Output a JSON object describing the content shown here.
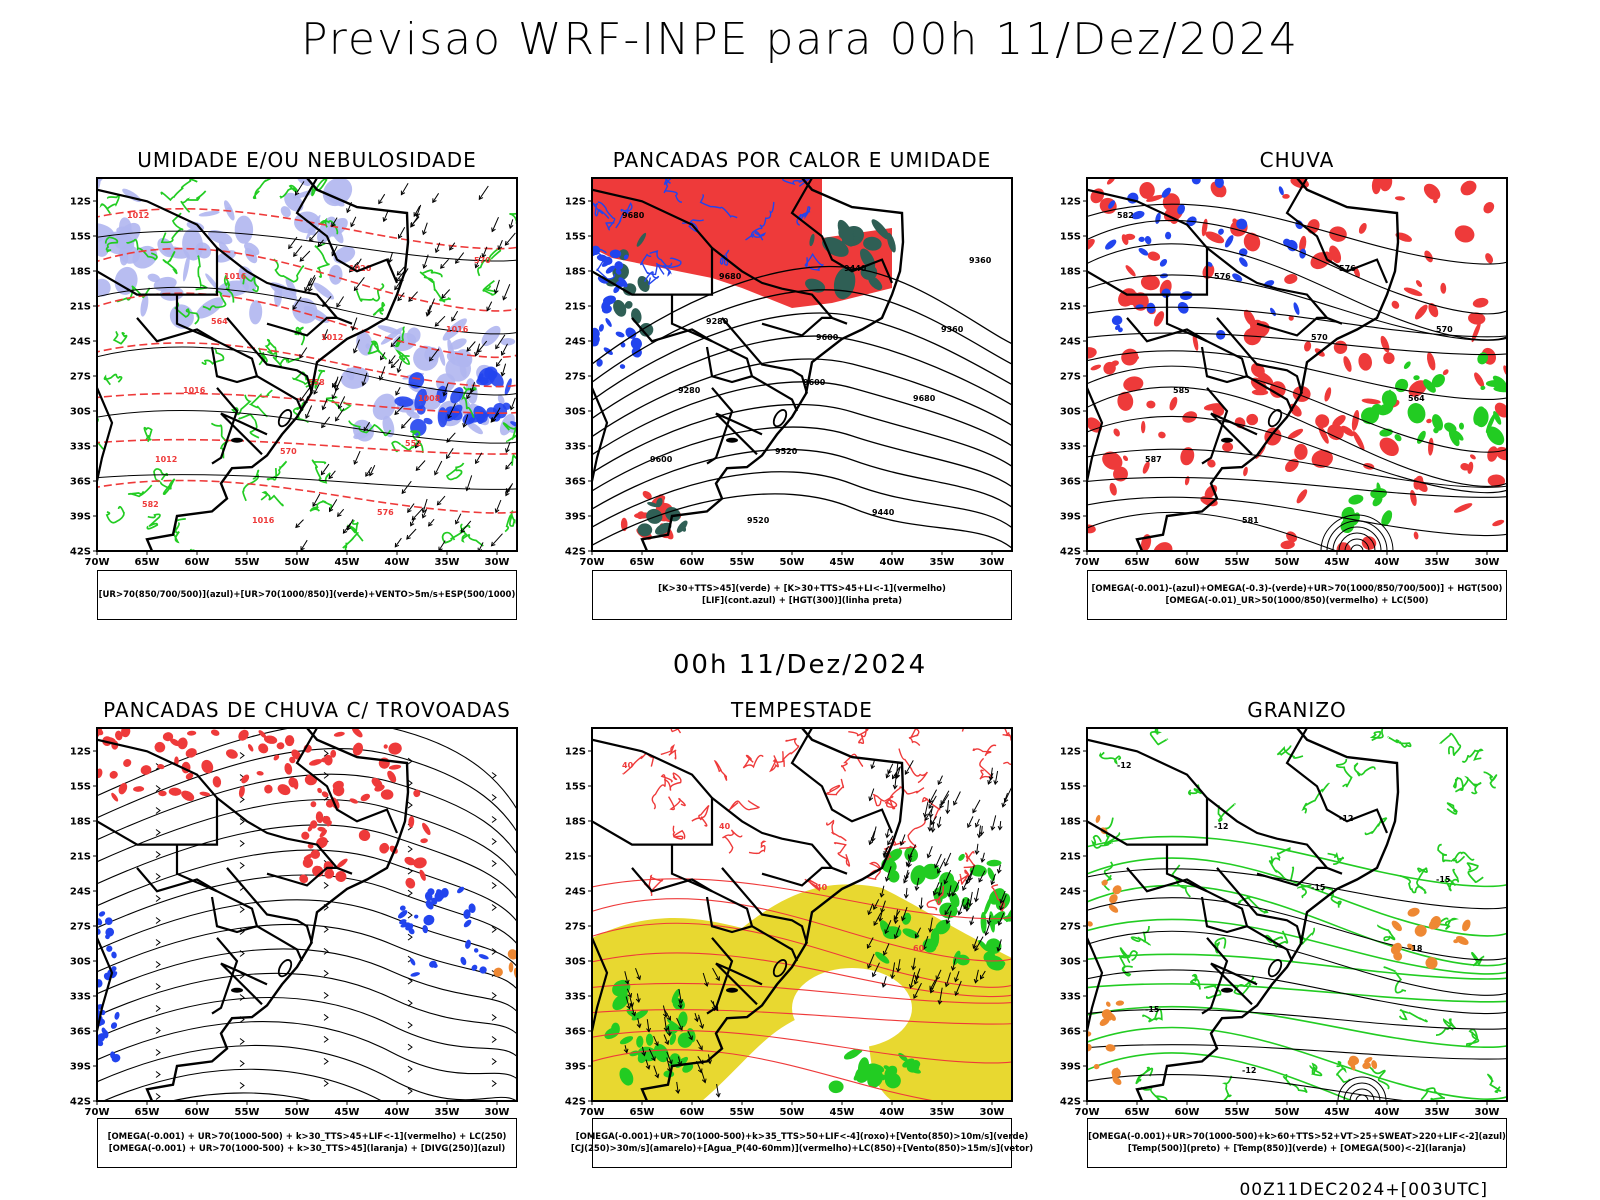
{
  "title": "Previsao WRF-INPE  para 00h 11/Dez/2024",
  "subtitle": "00h 11/Dez/2024",
  "footer": "00Z11DEC2024+[003UTC]",
  "axes": {
    "lat_labels": [
      "12S",
      "15S",
      "18S",
      "21S",
      "24S",
      "27S",
      "30S",
      "33S",
      "36S",
      "39S",
      "42S"
    ],
    "lon_labels": [
      "70W",
      "65W",
      "60W",
      "55W",
      "50W",
      "45W",
      "40W",
      "35W",
      "30W"
    ]
  },
  "colors": {
    "red": "#ee3a3a",
    "green": "#22cc22",
    "blue": "#2244ee",
    "lavender": "#b0b6f0",
    "dark_teal": "#2f5f55",
    "yellow": "#e8d830",
    "orange": "#ee8833",
    "black": "#000000"
  },
  "panels": [
    {
      "id": "umidade",
      "title": "UMIDADE E/OU NEBULOSIDADE",
      "legend": [
        "[UR>70(850/700/500)](azul)+[UR>70(1000/850)](verde)+VENTO>5m/s+ESP(500/1000)"
      ],
      "contour_labels": [
        "1012",
        "1016",
        "1012",
        "1008",
        "1012",
        "1016",
        "1020",
        "1016",
        "1016",
        "570",
        "576",
        "570",
        "564",
        "558",
        "552",
        "582"
      ]
    },
    {
      "id": "pancadas-calor",
      "title": "PANCADAS POR CALOR E UMIDADE",
      "legend": [
        "[K>30+TTS>45](verde) + [K>30+TTS>45+LI<-1](vermelho)",
        "[LIF](cont.azul) + [HGT(300)](linha preta)"
      ],
      "contour_labels": [
        "9680",
        "9680",
        "9600",
        "9680",
        "9600",
        "9520",
        "9440",
        "9360",
        "9280",
        "9520",
        "9440",
        "9360",
        "9280",
        "9600"
      ]
    },
    {
      "id": "chuva",
      "title": "CHUVA",
      "legend": [
        "[OMEGA(-0.001)-(azul)+OMEGA(-0.3)-(verde)+UR>70(1000/850/700/500)] + HGT(500)",
        "[OMEGA(-0.01)_UR>50(1000/850)(vermelho) + LC(500)"
      ],
      "contour_labels": [
        "582",
        "576",
        "570",
        "564",
        "587",
        "581",
        "576",
        "570",
        "585"
      ]
    },
    {
      "id": "pancadas-trovoadas",
      "title": "PANCADAS DE CHUVA C/ TROVOADAS",
      "legend": [
        "[OMEGA(-0.001) + UR>70(1000-500) + k>30_TTS>45+LIF<-1](vermelho) + LC(250)",
        "[OMEGA(-0.001) + UR>70(1000-500) + k>30_TTS>45](laranja) + [DIVG(250)](azul)"
      ]
    },
    {
      "id": "tempestade",
      "title": "TEMPESTADE",
      "legend": [
        "[OMEGA(-0.001)+UR>70(1000-500)+k>35_TTS>50+LIF<-4](roxo)+[Vento(850)>10m/s](verde)",
        "[CJ(250)>30m/s](amarelo)+[Agua_P(40-60mm)](vermelho)+LC(850)+[Vento(850)>15m/s](vetor)"
      ],
      "contour_labels": [
        "40",
        "40",
        "40",
        "60"
      ]
    },
    {
      "id": "granizo",
      "title": "GRANIZO",
      "legend": [
        "[OMEGA(-0.001)+UR>70(1000-500)+k>60+TTS>52+VT>25+SWEAT>220+LIF<-2](azul)",
        "[Temp(500)](preto) + [Temp(850)](verde) + [OMEGA(500)<-2](laranja)"
      ],
      "contour_labels": [
        "-12",
        "-12",
        "-15",
        "-18",
        "-15",
        "-12",
        "-12",
        "-15"
      ]
    }
  ]
}
